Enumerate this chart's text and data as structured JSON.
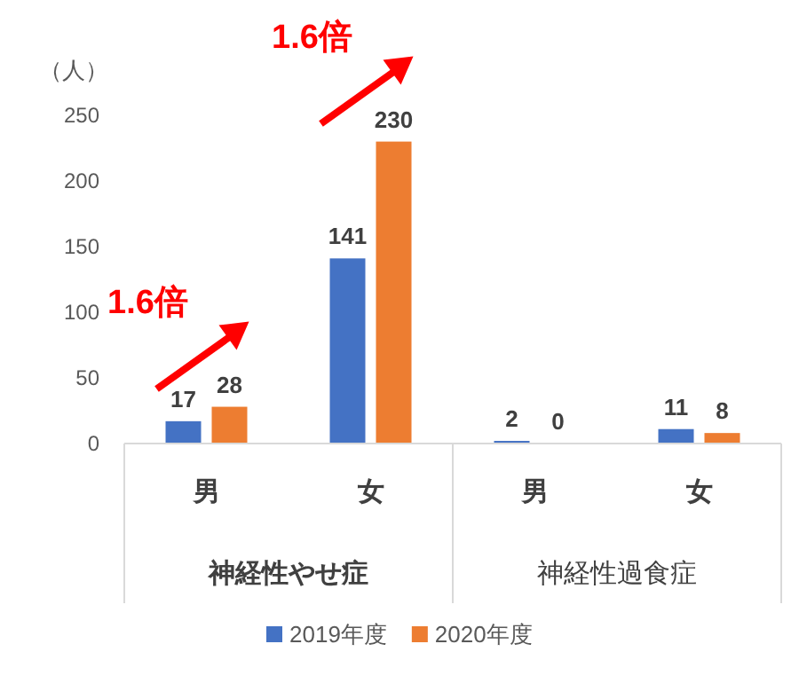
{
  "chart_data": {
    "type": "bar",
    "ylabel": "（人）",
    "categories": [
      "男",
      "女",
      "男",
      "女"
    ],
    "series": [
      {
        "name": "2019年度",
        "color": "#4472c4",
        "values": [
          17,
          141,
          2,
          11
        ]
      },
      {
        "name": "2020年度",
        "color": "#ed7d31",
        "values": [
          28,
          230,
          0,
          8
        ]
      }
    ],
    "ylim": [
      0,
      250
    ],
    "yticks": [
      0,
      50,
      100,
      150,
      200,
      250
    ],
    "grid": false,
    "data_labels": true,
    "legend": "bottom",
    "annotations": [
      "神経性やせ症",
      "神経性過食症",
      "1.6倍",
      "1.6倍"
    ]
  }
}
